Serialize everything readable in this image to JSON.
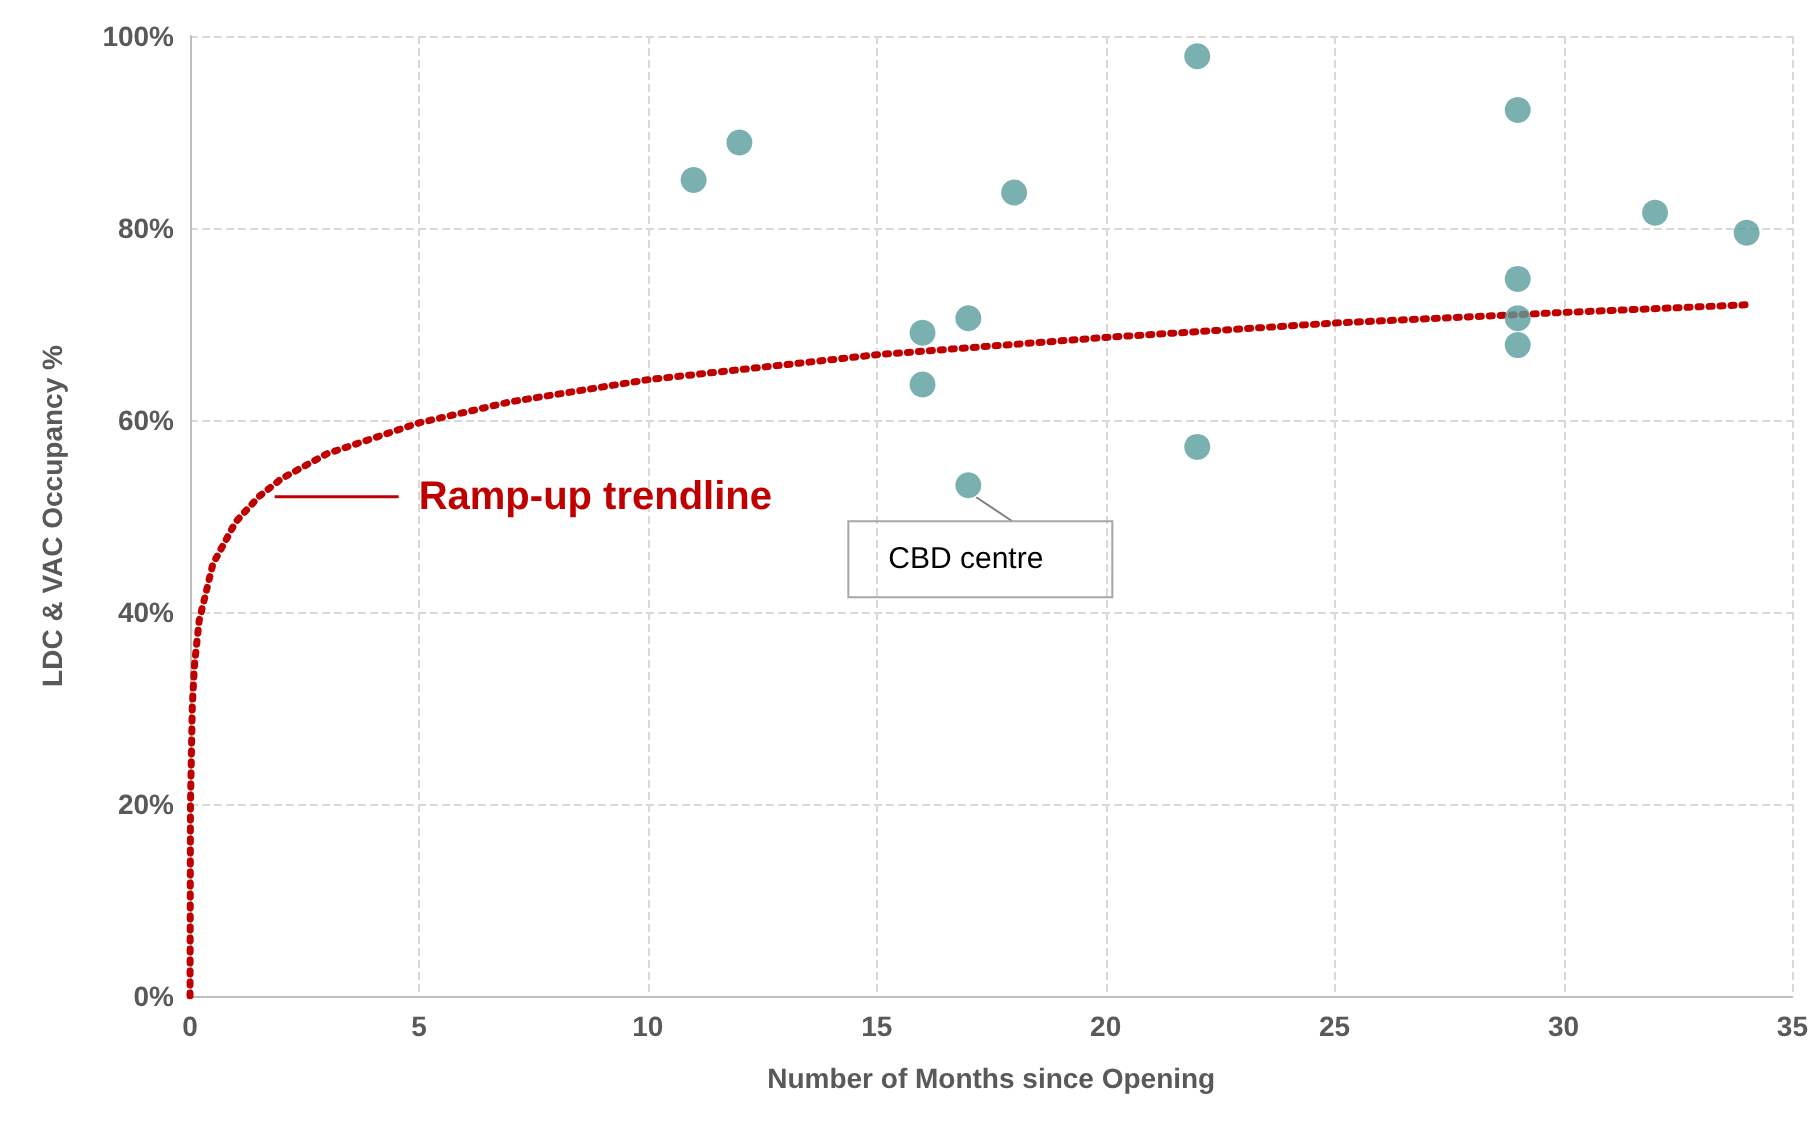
{
  "chart_data": {
    "type": "scatter",
    "xlabel": "Number of Months since Opening",
    "ylabel": "LDC & VAC Occupancy %",
    "xlim": [
      0,
      35
    ],
    "xticks": [
      0,
      5,
      10,
      15,
      20,
      25,
      30,
      35
    ],
    "ylim": [
      0,
      100
    ],
    "yticks": [
      {
        "value": 0,
        "label": "0%"
      },
      {
        "value": 20,
        "label": "20%"
      },
      {
        "value": 40,
        "label": "40%"
      },
      {
        "value": 60,
        "label": "60%"
      },
      {
        "value": 80,
        "label": "80%"
      },
      {
        "value": 100,
        "label": "100%"
      }
    ],
    "grid": true,
    "legend": "left",
    "marker": "circle",
    "series": [
      {
        "color": "#5a9c9c",
        "x": [
          11,
          12,
          16,
          16,
          17,
          17,
          18,
          22,
          22,
          29,
          29,
          29,
          29,
          32,
          34
        ],
        "values": [
          85.0,
          88.9,
          69.1,
          63.7,
          70.6,
          53.2,
          83.7,
          97.9,
          57.2,
          92.3,
          74.7,
          70.6,
          67.8,
          81.6,
          79.5
        ]
      },
      {
        "type": "line",
        "name": "Ramp-up trendline",
        "color": "#c00000",
        "line_style": "dotted",
        "marker": "none",
        "x": [
          0.0005,
          0.01,
          0.05,
          0.1,
          0.2,
          0.5,
          1,
          1.5,
          2,
          3,
          5,
          7,
          10,
          15,
          20,
          25,
          30,
          34
        ],
        "values": [
          0,
          19.8,
          30.2,
          34.6,
          39.1,
          45.0,
          49.4,
          52.0,
          53.9,
          56.5,
          59.7,
          61.9,
          64.2,
          66.8,
          68.6,
          70.1,
          71.2,
          72.0
        ]
      }
    ],
    "annotations": [
      {
        "text": "CBD centre",
        "x": 17,
        "y": 53.2
      }
    ]
  }
}
